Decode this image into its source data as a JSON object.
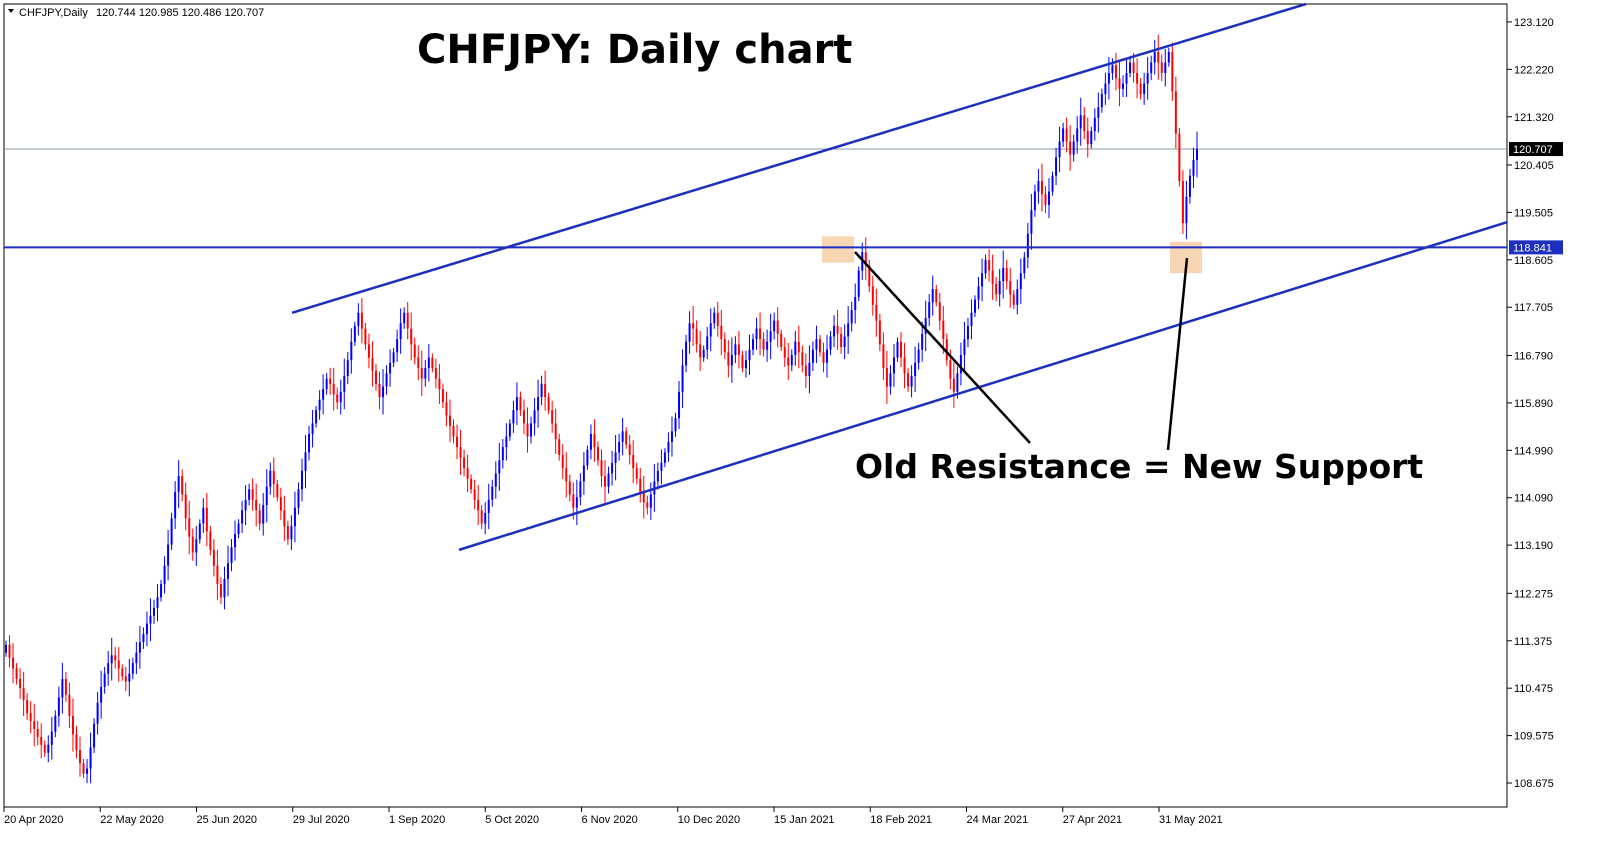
{
  "header": {
    "symbol_info": "CHFJPY,Daily",
    "ohlc": "120.744 120.985 120.486 120.707",
    "menu_icon": "triangle-down-icon"
  },
  "chart_data": {
    "type": "candlestick",
    "title": "CHFJPY: Daily chart",
    "annotation": "Old Resistance = New Support",
    "ylim": [
      108.22,
      123.46
    ],
    "y_ticks": [
      123.12,
      122.22,
      121.32,
      120.405,
      119.505,
      118.605,
      117.705,
      116.79,
      115.89,
      114.99,
      114.09,
      113.19,
      112.275,
      111.375,
      110.475,
      109.575,
      108.675
    ],
    "y_tick_labels": [
      "123.120",
      "122.220",
      "121.320",
      "120.405",
      "119.505",
      "118.605",
      "117.705",
      "116.790",
      "115.890",
      "114.990",
      "114.090",
      "113.190",
      "112.275",
      "111.375",
      "110.475",
      "109.575",
      "108.675"
    ],
    "x_tick_labels": [
      "20 Apr 2020",
      "22 May 2020",
      "25 Jun 2020",
      "29 Jul 2020",
      "1 Sep 2020",
      "5 Oct 2020",
      "6 Nov 2020",
      "10 Dec 2020",
      "15 Jan 2021",
      "18 Feb 2021",
      "24 Mar 2021",
      "27 Apr 2021",
      "31 May 2021"
    ],
    "current_price": {
      "label": "120.707",
      "value": 120.707
    },
    "horizontal_level": {
      "label": "118.841",
      "value": 118.841
    },
    "channel_upper": {
      "start": [
        "29 Jul 2020",
        117.6
      ],
      "end": [
        "2021 (right edge)",
        123.5
      ]
    },
    "channel_lower": {
      "start": [
        "Sep 2020",
        113.1
      ],
      "end": [
        "2021 (right edge)",
        119.3
      ]
    },
    "highlight_zones": [
      {
        "date": "Feb 2021",
        "low": 118.55,
        "high": 119.05
      },
      {
        "date": "Jun 2021",
        "low": 118.35,
        "high": 118.95
      }
    ],
    "colors": {
      "bull": "#0000ff",
      "bear": "#ff0000",
      "trendline": "#1c2fbe",
      "highlight": "#f6c899",
      "grid": "#c0c0c0"
    },
    "closes": [
      111.3,
      111.05,
      110.85,
      110.65,
      110.48,
      110.25,
      110.0,
      109.85,
      109.7,
      109.55,
      109.4,
      109.25,
      109.4,
      109.65,
      109.95,
      110.3,
      110.65,
      110.35,
      109.95,
      109.6,
      109.3,
      109.05,
      108.85,
      108.95,
      109.35,
      109.8,
      110.2,
      110.5,
      110.75,
      110.95,
      111.1,
      111.0,
      110.85,
      110.7,
      110.6,
      110.75,
      110.95,
      111.15,
      111.35,
      111.5,
      111.7,
      111.85,
      112.0,
      112.2,
      112.45,
      112.8,
      113.2,
      113.7,
      114.2,
      114.5,
      114.15,
      113.7,
      113.35,
      113.05,
      113.3,
      113.6,
      113.9,
      113.45,
      113.1,
      112.8,
      112.45,
      112.2,
      112.55,
      112.85,
      113.15,
      113.4,
      113.6,
      113.85,
      114.05,
      114.25,
      114.05,
      113.85,
      113.6,
      113.95,
      114.3,
      114.6,
      114.35,
      114.1,
      113.85,
      113.55,
      113.3,
      113.55,
      113.9,
      114.25,
      114.6,
      114.95,
      115.3,
      115.5,
      115.75,
      115.95,
      116.15,
      116.35,
      116.25,
      116.05,
      115.9,
      116.1,
      116.4,
      116.7,
      117.05,
      117.35,
      117.6,
      117.3,
      117.0,
      116.75,
      116.5,
      116.25,
      116.0,
      116.2,
      116.45,
      116.65,
      116.85,
      117.1,
      117.4,
      117.6,
      117.3,
      117.0,
      116.75,
      116.55,
      116.35,
      116.55,
      116.75,
      116.55,
      116.35,
      116.15,
      115.9,
      115.65,
      115.45,
      115.25,
      115.05,
      114.85,
      114.65,
      114.45,
      114.25,
      114.05,
      113.85,
      113.6,
      113.8,
      114.05,
      114.3,
      114.55,
      114.8,
      115.05,
      115.25,
      115.5,
      115.75,
      116.0,
      115.75,
      115.5,
      115.25,
      115.5,
      115.75,
      116.0,
      116.25,
      116.0,
      115.75,
      115.5,
      115.2,
      114.9,
      114.65,
      114.4,
      114.15,
      113.9,
      114.1,
      114.4,
      114.7,
      115.0,
      115.3,
      115.05,
      114.8,
      114.5,
      114.3,
      114.55,
      114.75,
      114.95,
      115.15,
      115.35,
      115.1,
      114.9,
      114.65,
      114.45,
      114.2,
      114.0,
      113.9,
      114.15,
      114.4,
      114.6,
      114.75,
      114.95,
      115.15,
      115.35,
      115.6,
      116.1,
      116.6,
      117.05,
      117.4,
      117.3,
      117.0,
      116.75,
      116.9,
      117.15,
      117.4,
      117.6,
      117.35,
      117.1,
      116.85,
      116.6,
      116.8,
      117.0,
      116.8,
      116.55,
      116.7,
      116.9,
      117.1,
      117.3,
      117.1,
      116.9,
      117.05,
      117.25,
      117.45,
      117.2,
      116.95,
      116.75,
      116.6,
      116.8,
      117.05,
      116.85,
      116.6,
      116.4,
      116.65,
      116.9,
      117.1,
      116.85,
      116.65,
      116.9,
      117.15,
      117.35,
      117.2,
      116.95,
      117.15,
      117.4,
      117.65,
      117.9,
      118.4,
      118.75,
      118.5,
      118.1,
      117.75,
      117.45,
      117.0,
      116.55,
      116.2,
      116.45,
      116.75,
      117.05,
      116.75,
      116.45,
      116.2,
      116.4,
      116.65,
      116.9,
      117.2,
      117.5,
      117.8,
      118.05,
      117.8,
      117.45,
      117.1,
      116.7,
      116.35,
      116.1,
      116.45,
      116.8,
      117.1,
      117.35,
      117.6,
      117.85,
      118.1,
      118.35,
      118.6,
      118.4,
      118.15,
      117.95,
      118.2,
      118.45,
      118.2,
      117.95,
      117.75,
      118.05,
      118.35,
      118.65,
      119.1,
      119.55,
      119.9,
      120.1,
      119.85,
      119.65,
      119.9,
      120.2,
      120.55,
      120.85,
      121.1,
      120.85,
      120.6,
      120.85,
      121.1,
      121.35,
      121.05,
      120.8,
      121.05,
      121.3,
      121.5,
      121.75,
      121.95,
      122.15,
      122.3,
      122.05,
      121.85,
      121.95,
      122.15,
      122.35,
      122.15,
      121.95,
      121.75,
      121.95,
      122.15,
      122.35,
      122.55,
      122.35,
      122.15,
      122.35,
      122.55,
      121.8,
      121.0,
      120.1,
      119.3,
      119.8,
      120.2,
      120.5,
      120.707
    ],
    "series": [
      {
        "name": "CHFJPY"
      }
    ]
  }
}
